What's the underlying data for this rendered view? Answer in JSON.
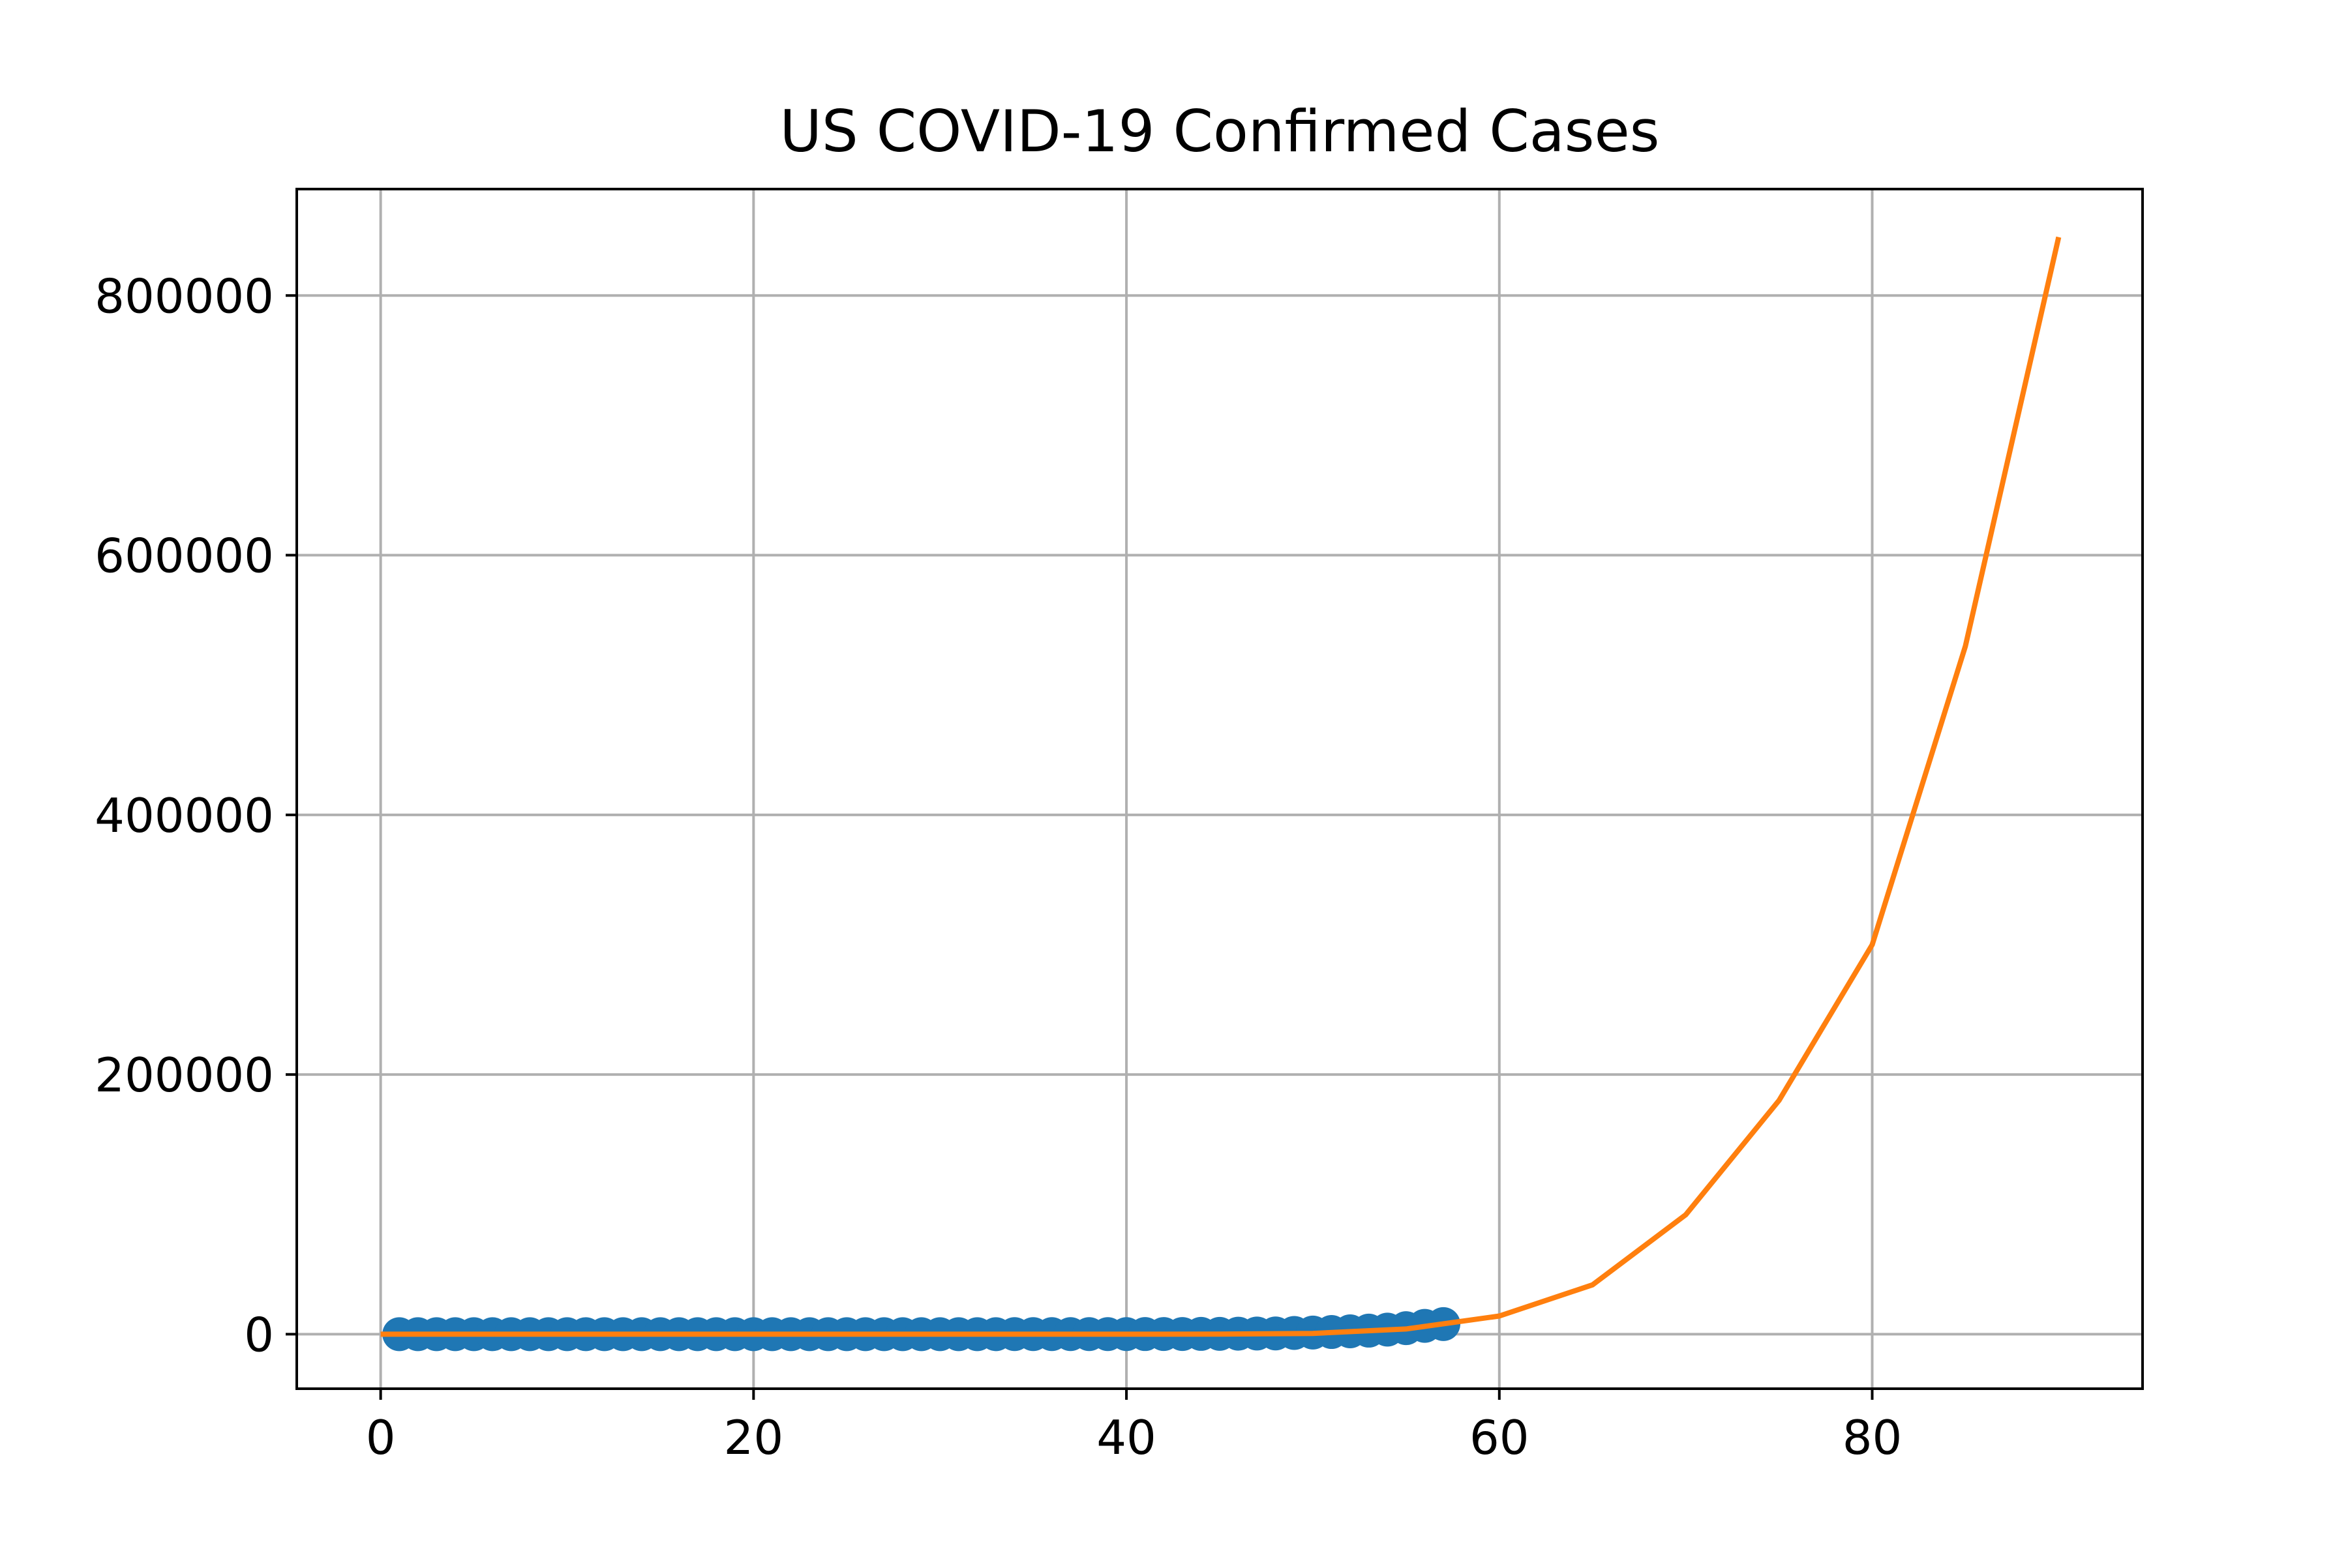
{
  "chart_data": {
    "type": "scatter",
    "title": "US COVID-19 Confirmed Cases",
    "xlabel": "",
    "ylabel": "",
    "xlim": [
      -4.5,
      94.5
    ],
    "ylim": [
      -42000,
      882000
    ],
    "grid": true,
    "legend": "none",
    "x_ticks": [
      0,
      20,
      40,
      60,
      80
    ],
    "x_tick_labels": [
      "0",
      "20",
      "40",
      "60",
      "80"
    ],
    "y_ticks": [
      0,
      200000,
      400000,
      600000,
      800000
    ],
    "y_tick_labels": [
      "0",
      "200000",
      "400000",
      "600000",
      "800000"
    ],
    "colors": {
      "points": "#1f77b4",
      "fit": "#ff7f0e",
      "grid": "#b0b0b0",
      "axes": "#000000"
    },
    "series": [
      {
        "type": "scatter",
        "x": [
          1,
          2,
          3,
          4,
          5,
          6,
          7,
          8,
          9,
          10,
          11,
          12,
          13,
          14,
          15,
          16,
          17,
          18,
          19,
          20,
          21,
          22,
          23,
          24,
          25,
          26,
          27,
          28,
          29,
          30,
          31,
          32,
          33,
          34,
          35,
          36,
          37,
          38,
          39,
          40,
          41,
          42,
          43,
          44,
          45,
          46,
          47,
          48,
          49,
          50,
          51,
          52,
          53,
          54,
          55,
          56,
          57
        ],
        "y": [
          1,
          1,
          2,
          2,
          5,
          5,
          5,
          5,
          5,
          7,
          8,
          8,
          11,
          11,
          11,
          11,
          11,
          11,
          11,
          11,
          12,
          12,
          13,
          13,
          13,
          13,
          13,
          13,
          13,
          13,
          15,
          15,
          15,
          51,
          51,
          57,
          58,
          60,
          68,
          74,
          98,
          118,
          149,
          217,
          262,
          402,
          518,
          583,
          959,
          1281,
          1663,
          2179,
          2727,
          3499,
          4632,
          6421,
          7786
        ]
      },
      {
        "type": "line",
        "x": [
          0,
          5,
          10,
          15,
          20,
          25,
          30,
          35,
          40,
          45,
          50,
          55,
          60,
          65,
          70,
          75,
          80,
          85,
          90
        ],
        "y": [
          0,
          0,
          0,
          0,
          0,
          0,
          0,
          0,
          0,
          50,
          600,
          4000,
          14000,
          38000,
          92000,
          180000,
          300000,
          530000,
          845000
        ]
      }
    ]
  }
}
